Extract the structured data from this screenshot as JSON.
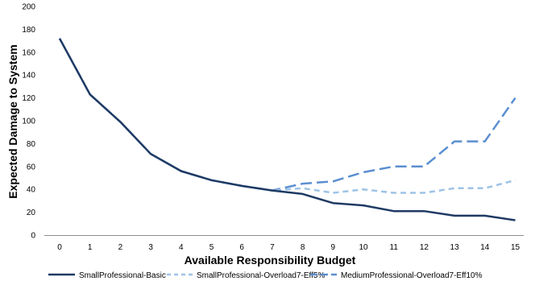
{
  "chart_data": {
    "type": "line",
    "title": "",
    "xlabel": "Available Responsibility Budget",
    "ylabel": "Expected Damage to System",
    "x": [
      0,
      1,
      2,
      3,
      4,
      5,
      6,
      7,
      8,
      9,
      10,
      11,
      12,
      13,
      14,
      15
    ],
    "x_tick_labels": [
      "0",
      "1",
      "2",
      "3",
      "4",
      "5",
      "6",
      "7",
      "8",
      "9",
      "10",
      "11",
      "12",
      "13",
      "14",
      "15"
    ],
    "ylim": [
      0,
      200
    ],
    "y_ticks": [
      0,
      20,
      40,
      60,
      80,
      100,
      120,
      140,
      160,
      180,
      200
    ],
    "y_tick_labels": [
      "0",
      "20",
      "40",
      "60",
      "80",
      "100",
      "120",
      "140",
      "160",
      "180",
      "200"
    ],
    "grid": false,
    "legend_position": "bottom",
    "series": [
      {
        "name": "SmallProfessional-Basic",
        "color": "#1F3A64",
        "dash": "solid",
        "values": [
          172,
          123,
          99,
          71,
          56,
          48,
          43,
          39,
          36,
          28,
          26,
          21,
          21,
          17,
          17,
          13
        ]
      },
      {
        "name": "SmallProfessional-Overload7-Eff5%",
        "color": "#9DC3E6",
        "dash": "dashed",
        "values": [
          172,
          123,
          99,
          71,
          56,
          48,
          43,
          39,
          41,
          37,
          40,
          37,
          37,
          41,
          41,
          48
        ]
      },
      {
        "name": "MediumProfessional-Overload7-Eff10%",
        "color": "#5B8FD0",
        "dash": "longdash",
        "values": [
          172,
          123,
          99,
          71,
          56,
          48,
          43,
          39,
          45,
          47,
          55,
          60,
          60,
          82,
          82,
          120
        ]
      }
    ]
  }
}
